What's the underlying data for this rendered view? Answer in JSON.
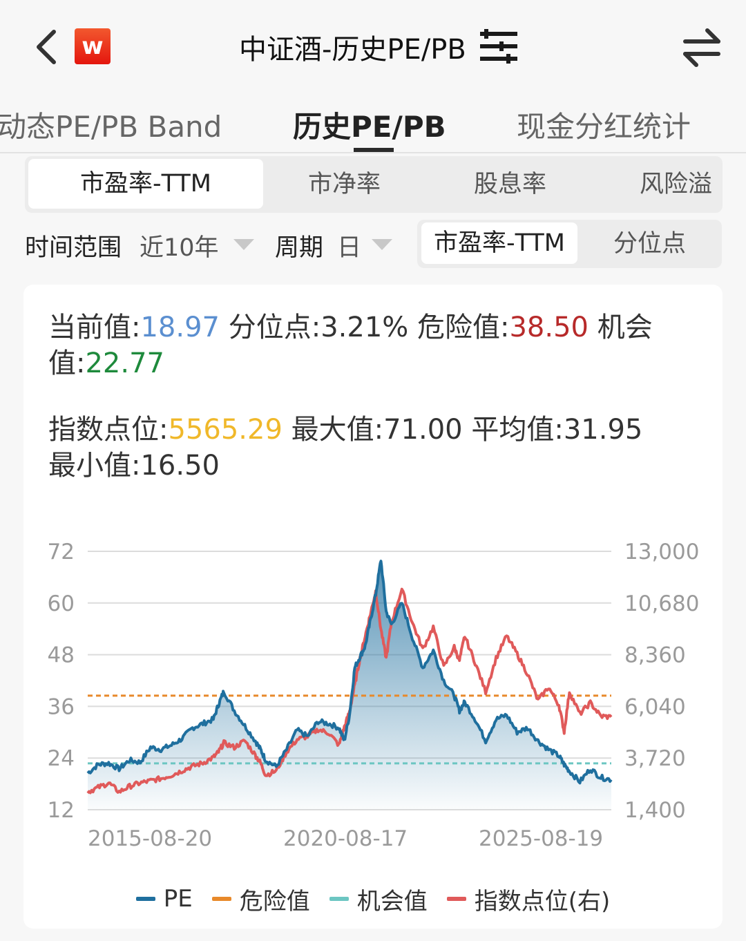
{
  "header": {
    "title": "中证酒-历史PE/PB",
    "logo_text": "w",
    "back_icon": "chevron-left-icon",
    "filter_icon": "sliders-icon",
    "switch_icon": "swap-arrows-icon"
  },
  "tabs": [
    {
      "label": "动态PE/PB Band",
      "active": false
    },
    {
      "label": "历史PE/PB",
      "active": true
    },
    {
      "label": "现金分红统计",
      "active": false
    }
  ],
  "metric_tabs": [
    {
      "label": "市盈率-TTM",
      "active": true
    },
    {
      "label": "市净率",
      "active": false
    },
    {
      "label": "股息率",
      "active": false
    },
    {
      "label": "风险溢",
      "active": false
    }
  ],
  "filters": {
    "range_label": "时间范围",
    "range_value": "近10年",
    "period_label": "周期",
    "period_value": "日"
  },
  "view_toggle": [
    {
      "label": "市盈率-TTM",
      "active": true
    },
    {
      "label": "分位点",
      "active": false
    }
  ],
  "stats": {
    "current_label": "当前值:",
    "current_value": "18.97",
    "percentile_label": "分位点:",
    "percentile_value": "3.21%",
    "danger_label": "危险值:",
    "danger_value": "38.50",
    "opportunity_label_1": "机会",
    "opportunity_label_2": "值:",
    "opportunity_value": "22.77",
    "index_label": "指数点位:",
    "index_value": "5565.29",
    "max_label": "最大值:",
    "max_value": "71.00",
    "avg_label": "平均值:",
    "avg_value": "31.95",
    "min_label": "最小值:",
    "min_value": "16.50"
  },
  "colors": {
    "pe": "#1f6f9e",
    "danger": "#e8892a",
    "opportunity": "#6cc6c2",
    "index": "#e05a5a",
    "current_value": "#5b8fd0",
    "danger_value": "#b72a2a",
    "opportunity_value": "#1e8a3c",
    "index_value": "#f0b82a"
  },
  "chart_data": {
    "type": "line",
    "title": "",
    "xlabel": "",
    "ylabel": "PE",
    "y2label": "指数点位",
    "ylim": [
      12,
      72
    ],
    "y2lim": [
      1400,
      13000
    ],
    "yticks": [
      72,
      60,
      48,
      36,
      24,
      12
    ],
    "y2ticks": [
      "13,000",
      "10,680",
      "8,360",
      "6,040",
      "3,720",
      "1,400"
    ],
    "xticks": [
      "2015-08-20",
      "2020-08-17",
      "2025-08-19"
    ],
    "grid": true,
    "legend_position": "bottom",
    "reference_lines": [
      {
        "name": "危险值",
        "value": 38.5,
        "style": "dashed"
      },
      {
        "name": "机会值",
        "value": 22.77,
        "style": "dashed"
      }
    ],
    "x": [
      0,
      0.02,
      0.04,
      0.06,
      0.08,
      0.1,
      0.12,
      0.14,
      0.16,
      0.18,
      0.2,
      0.22,
      0.24,
      0.25,
      0.26,
      0.28,
      0.3,
      0.32,
      0.33,
      0.34,
      0.36,
      0.38,
      0.4,
      0.42,
      0.44,
      0.46,
      0.48,
      0.49,
      0.5,
      0.51,
      0.52,
      0.53,
      0.54,
      0.55,
      0.56,
      0.57,
      0.58,
      0.6,
      0.62,
      0.64,
      0.66,
      0.68,
      0.7,
      0.71,
      0.72,
      0.74,
      0.76,
      0.78,
      0.8,
      0.82,
      0.84,
      0.86,
      0.88,
      0.9,
      0.91,
      0.92,
      0.94,
      0.96,
      0.98,
      1.0
    ],
    "series": [
      {
        "name": "PE",
        "axis": "left",
        "values": [
          20.5,
          22.5,
          22.8,
          21.5,
          23.5,
          23.0,
          26.5,
          26.0,
          27.0,
          28.5,
          31.0,
          32.0,
          33.0,
          36.5,
          39.5,
          35.0,
          31.5,
          28.0,
          26.0,
          23.5,
          22.0,
          26.0,
          30.5,
          29.0,
          32.5,
          32.0,
          31.0,
          28.0,
          34.0,
          45.0,
          47.5,
          50.0,
          56.0,
          62.0,
          70.0,
          58.0,
          55.0,
          60.0,
          52.0,
          45.0,
          49.0,
          42.0,
          38.5,
          35.0,
          37.0,
          33.0,
          28.0,
          33.0,
          34.0,
          30.0,
          31.0,
          28.0,
          26.0,
          24.5,
          22.5,
          21.0,
          18.5,
          21.5,
          19.5,
          18.97
        ]
      },
      {
        "name": "指数点位",
        "axis": "right",
        "values": [
          2200,
          2400,
          2600,
          2200,
          2450,
          2600,
          2700,
          2800,
          2950,
          3150,
          3350,
          3500,
          3750,
          4000,
          4400,
          4200,
          4500,
          3850,
          3500,
          2950,
          3150,
          4000,
          4550,
          4700,
          5000,
          4850,
          4300,
          5100,
          5800,
          7000,
          8200,
          9200,
          10200,
          11200,
          9500,
          8200,
          9800,
          11300,
          9800,
          8600,
          9600,
          7800,
          8700,
          8100,
          9200,
          8000,
          6700,
          8200,
          9200,
          8400,
          7500,
          6300,
          6900,
          6100,
          4900,
          6700,
          5700,
          6200,
          5600,
          5565.29
        ]
      },
      {
        "name": "危险值",
        "axis": "left",
        "values": [
          38.5
        ]
      },
      {
        "name": "机会值",
        "axis": "left",
        "values": [
          22.77
        ]
      }
    ]
  },
  "legend": [
    {
      "label": "PE",
      "color_key": "pe"
    },
    {
      "label": "危险值",
      "color_key": "danger"
    },
    {
      "label": "机会值",
      "color_key": "opportunity"
    },
    {
      "label": "指数点位(右)",
      "color_key": "index"
    }
  ]
}
